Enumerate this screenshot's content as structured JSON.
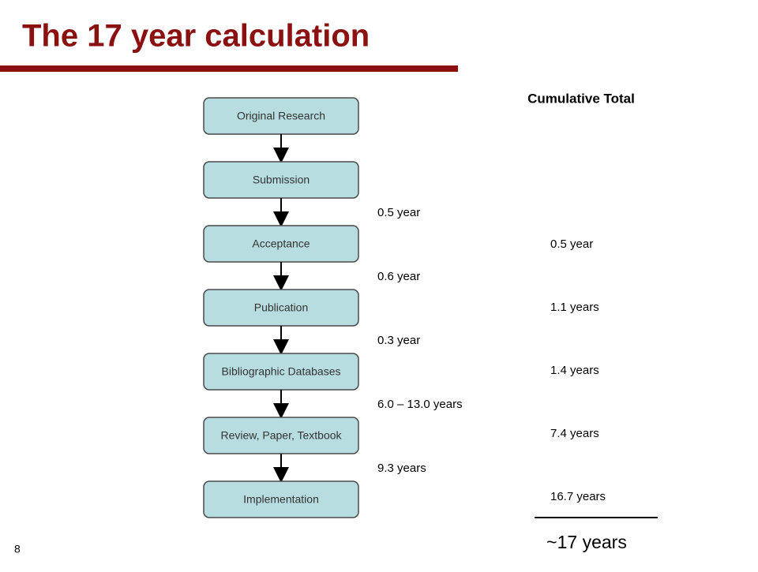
{
  "title": "The 17 year calculation",
  "steps": [
    "Original Research",
    "Submission",
    "Acceptance",
    "Publication",
    "Bibliographic Databases",
    "Review, Paper, Textbook",
    "Implementation"
  ],
  "intervals": [
    "0.5 year",
    "0.6 year",
    "0.3 year",
    "6.0 – 13.0 years",
    "9.3 years"
  ],
  "cumulative_header": "Cumulative Total",
  "cumulative": [
    "0.5 year",
    "1.1 years",
    "1.4 years",
    "7.4 years",
    "16.7 years"
  ],
  "total": "~17 years",
  "page_number": "8"
}
